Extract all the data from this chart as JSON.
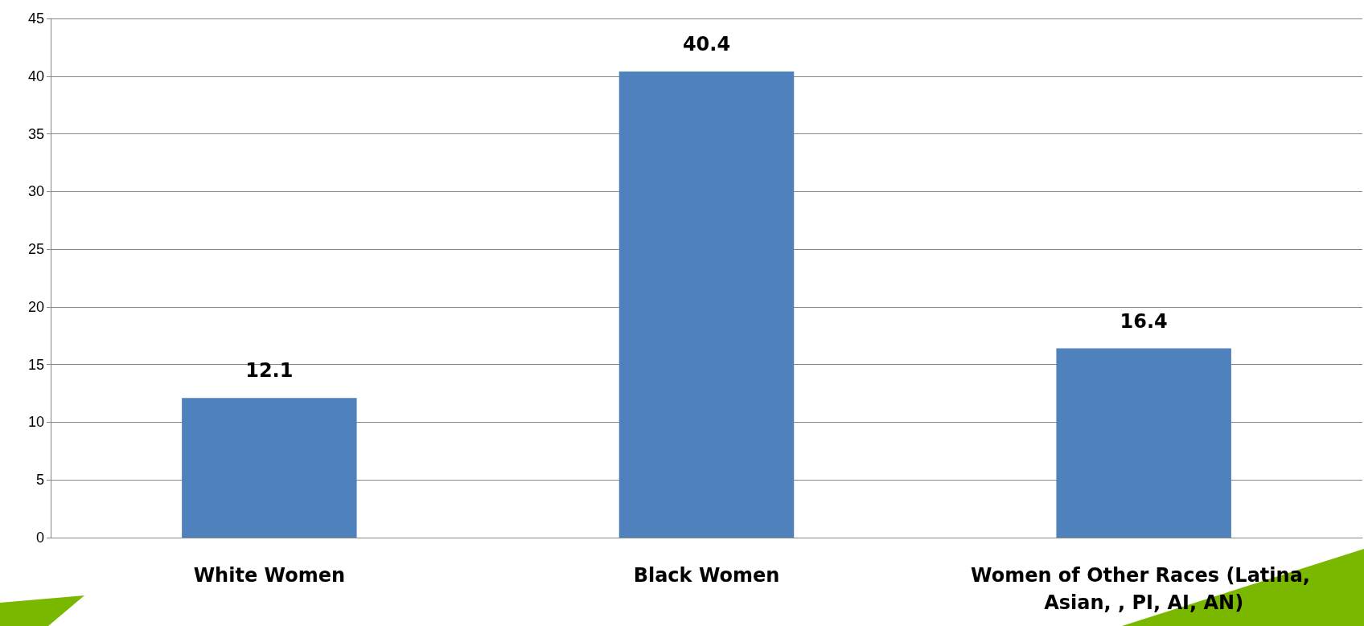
{
  "chart_data": {
    "type": "bar",
    "categories": [
      "White Women",
      "Black Women",
      "Women of Other Races (Latina, Asian, , PI, AI, AN)"
    ],
    "values": [
      12.1,
      40.4,
      16.4
    ],
    "color": "#4f81bd",
    "ylim": [
      0,
      45
    ],
    "yticks": [
      0,
      5,
      10,
      15,
      20,
      25,
      30,
      35,
      40,
      45
    ],
    "grid": "y",
    "data_labels": true
  }
}
